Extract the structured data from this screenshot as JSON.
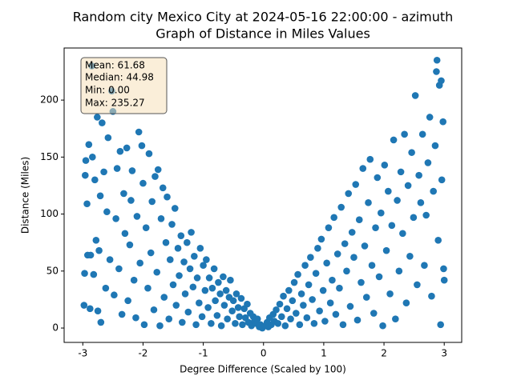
{
  "chart_data": {
    "type": "scatter",
    "title": "Random city Mexico City at 2024-05-16 22:00:00  - azimuth",
    "subtitle": "Graph of Distance in Miles Values",
    "x_label": "Degree Difference (Scaled by 100)",
    "y_label": "Distance (Miles)",
    "annotations": [
      "Mean: 61.68",
      "Median: 44.98",
      "Min: 0.00",
      "Max: 235.27"
    ],
    "color": "#1f77b4",
    "xlim": [
      -3.31,
      3.29
    ],
    "ylim": [
      -12.6,
      245.7
    ],
    "xticks": [
      -3,
      -2,
      -1,
      0,
      1,
      2,
      3
    ],
    "yticks": [
      0,
      50,
      100,
      150,
      200
    ],
    "x": [
      -2.98,
      -2.97,
      -2.96,
      -2.95,
      -2.93,
      -2.92,
      -2.9,
      -2.88,
      -2.87,
      -2.85,
      -2.84,
      -2.82,
      -2.8,
      -2.78,
      -2.76,
      -2.75,
      -2.73,
      -2.71,
      -2.7,
      -2.68,
      -2.65,
      -2.62,
      -2.6,
      -2.58,
      -2.55,
      -2.52,
      -2.5,
      -2.48,
      -2.45,
      -2.43,
      -2.4,
      -2.38,
      -2.35,
      -2.32,
      -2.3,
      -2.27,
      -2.25,
      -2.22,
      -2.2,
      -2.18,
      -2.15,
      -2.12,
      -2.1,
      -2.07,
      -2.05,
      -2.02,
      -2.0,
      -1.98,
      -1.95,
      -1.92,
      -1.9,
      -1.87,
      -1.85,
      -1.82,
      -1.8,
      -1.77,
      -1.75,
      -1.72,
      -1.7,
      -1.67,
      -1.65,
      -1.62,
      -1.6,
      -1.57,
      -1.55,
      -1.52,
      -1.5,
      -1.47,
      -1.45,
      -1.42,
      -1.4,
      -1.37,
      -1.35,
      -1.32,
      -1.3,
      -1.27,
      -1.25,
      -1.22,
      -1.2,
      -1.17,
      -1.15,
      -1.12,
      -1.1,
      -1.07,
      -1.05,
      -1.02,
      -1.0,
      -0.97,
      -0.95,
      -0.92,
      -0.9,
      -0.87,
      -0.85,
      -0.82,
      -0.8,
      -0.77,
      -0.75,
      -0.72,
      -0.7,
      -0.67,
      -0.65,
      -0.62,
      -0.6,
      -0.57,
      -0.55,
      -0.52,
      -0.5,
      -0.47,
      -0.45,
      -0.42,
      -0.4,
      -0.37,
      -0.35,
      -0.32,
      -0.3,
      -0.27,
      -0.25,
      -0.22,
      -0.2,
      -0.17,
      -0.15,
      -0.12,
      -0.1,
      -0.07,
      -0.05,
      -0.02,
      0.03,
      0.06,
      0.08,
      0.1,
      0.13,
      0.16,
      0.18,
      0.21,
      0.24,
      0.27,
      0.3,
      0.33,
      0.36,
      0.39,
      0.42,
      0.45,
      0.48,
      0.51,
      0.54,
      0.57,
      0.6,
      0.63,
      0.66,
      0.69,
      0.72,
      0.75,
      0.78,
      0.81,
      0.84,
      0.87,
      0.9,
      0.93,
      0.96,
      0.99,
      1.02,
      1.05,
      1.08,
      1.11,
      1.14,
      1.17,
      1.2,
      1.23,
      1.26,
      1.29,
      1.32,
      1.35,
      1.38,
      1.41,
      1.44,
      1.47,
      1.5,
      1.53,
      1.56,
      1.59,
      1.62,
      1.65,
      1.68,
      1.71,
      1.74,
      1.77,
      1.8,
      1.83,
      1.86,
      1.89,
      1.92,
      1.95,
      1.98,
      2.01,
      2.04,
      2.07,
      2.1,
      2.13,
      2.16,
      2.19,
      2.22,
      2.25,
      2.28,
      2.31,
      2.34,
      2.37,
      2.4,
      2.43,
      2.46,
      2.49,
      2.52,
      2.55,
      2.58,
      2.61,
      2.64,
      2.67,
      2.7,
      2.73,
      2.76,
      2.79,
      2.82,
      2.85,
      2.88,
      2.9,
      2.92,
      2.94,
      2.96,
      2.98,
      3.0,
      2.99,
      2.87,
      2.95
    ],
    "y": [
      20,
      48,
      134,
      147,
      109,
      64,
      161,
      17,
      64,
      230,
      150,
      47,
      130,
      77,
      185,
      15,
      68,
      116,
      5,
      180,
      137,
      35,
      102,
      167,
      60,
      208,
      190,
      29,
      96,
      140,
      52,
      155,
      12,
      118,
      83,
      158,
      24,
      73,
      112,
      138,
      42,
      9,
      98,
      172,
      57,
      160,
      127,
      3,
      88,
      35,
      153,
      66,
      111,
      16,
      133,
      49,
      139,
      2,
      96,
      123,
      27,
      75,
      115,
      8,
      60,
      91,
      38,
      105,
      20,
      70,
      46,
      81,
      5,
      58,
      30,
      75,
      14,
      52,
      84,
      36,
      63,
      3,
      44,
      22,
      70,
      10,
      55,
      33,
      60,
      18,
      44,
      4,
      35,
      52,
      24,
      11,
      40,
      30,
      2,
      45,
      20,
      33,
      8,
      27,
      42,
      15,
      24,
      4,
      30,
      18,
      10,
      26,
      3,
      17,
      9,
      21,
      5,
      13,
      2,
      10,
      6,
      4,
      8,
      1,
      3,
      0,
      2,
      5,
      1,
      9,
      3,
      12,
      6,
      16,
      4,
      21,
      10,
      28,
      2,
      17,
      33,
      8,
      24,
      40,
      13,
      47,
      3,
      30,
      20,
      55,
      9,
      38,
      62,
      25,
      4,
      48,
      70,
      15,
      78,
      33,
      6,
      57,
      88,
      22,
      42,
      97,
      12,
      65,
      35,
      106,
      3,
      74,
      50,
      118,
      19,
      84,
      62,
      126,
      7,
      95,
      40,
      140,
      72,
      27,
      110,
      148,
      55,
      13,
      88,
      132,
      45,
      101,
      2,
      143,
      68,
      120,
      30,
      90,
      165,
      8,
      112,
      50,
      137,
      83,
      170,
      22,
      125,
      63,
      154,
      97,
      204,
      38,
      134,
      110,
      170,
      55,
      99,
      145,
      185,
      28,
      120,
      160,
      235,
      77,
      213,
      3,
      130,
      181,
      42,
      52,
      225,
      217
    ]
  }
}
